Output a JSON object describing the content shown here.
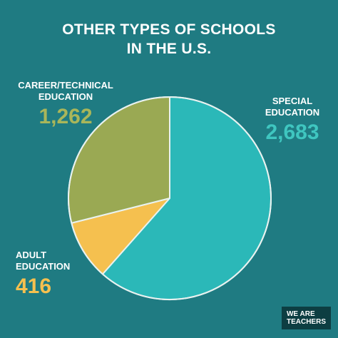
{
  "title": {
    "line1": "OTHER TYPES OF SCHOOLS",
    "line2": "IN THE U.S."
  },
  "chart_data": {
    "type": "pie",
    "title": "OTHER TYPES OF SCHOOLS IN THE U.S.",
    "slices": [
      {
        "label": "SPECIAL EDUCATION",
        "value": 2683,
        "display": "2,683",
        "color": "#2bb8b8"
      },
      {
        "label": "ADULT EDUCATION",
        "value": 416,
        "display": "416",
        "color": "#f5c04f"
      },
      {
        "label": "CAREER/TECHNICAL EDUCATION",
        "value": 1262,
        "display": "1,262",
        "color": "#9aa953"
      }
    ],
    "start": "top, clockwise",
    "value_colors": {
      "SPECIAL EDUCATION": "#3fc6c0",
      "ADULT EDUCATION": "#f5c04f",
      "CAREER/TECHNICAL EDUCATION": "#a9b65a"
    }
  },
  "labels": {
    "career": {
      "name_line1": "CAREER/TECHNICAL",
      "name_line2": "EDUCATION",
      "value": "1,262"
    },
    "special": {
      "name_line1": "SPECIAL",
      "name_line2": "EDUCATION",
      "value": "2,683"
    },
    "adult": {
      "name_line1": "ADULT",
      "name_line2": "EDUCATION",
      "value": "416"
    }
  },
  "badge": {
    "line1": "WE ARE",
    "line2": "TEACHERS"
  },
  "colors": {
    "background": "#1f7b82",
    "divider": "#e8f2f0"
  }
}
